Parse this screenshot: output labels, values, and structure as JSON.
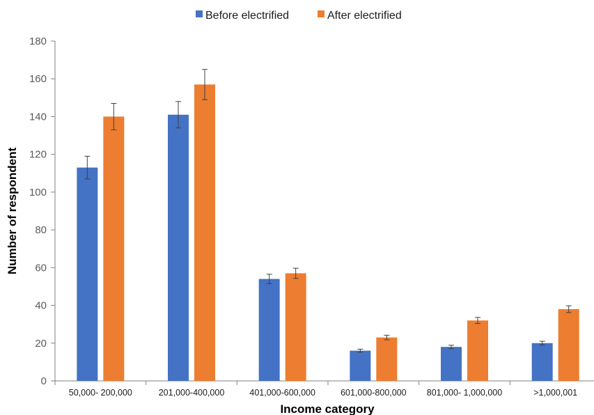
{
  "chart_data": {
    "type": "bar",
    "title": "",
    "xlabel": "Income category",
    "ylabel": "Number of respondent",
    "ylim": [
      0,
      180
    ],
    "yticks": [
      0,
      20,
      40,
      60,
      80,
      100,
      120,
      140,
      160,
      180
    ],
    "grid": false,
    "legend_position": "top-center",
    "categories": [
      "50,000- 200,000",
      "201,000-400,000",
      "401,000-600,000",
      "601,000-800,000",
      "801,000- 1,000,000",
      ">1,000,001"
    ],
    "series": [
      {
        "name": "Before electrified",
        "color": "#4472C4",
        "values": [
          113,
          141,
          54,
          16,
          18,
          20
        ],
        "error": [
          6,
          7,
          2.5,
          0.8,
          0.9,
          1
        ]
      },
      {
        "name": "After electrified",
        "color": "#ED7D31",
        "values": [
          140,
          157,
          57,
          23,
          32,
          38
        ],
        "error": [
          7,
          8,
          2.7,
          1.2,
          1.6,
          1.8
        ]
      }
    ]
  }
}
